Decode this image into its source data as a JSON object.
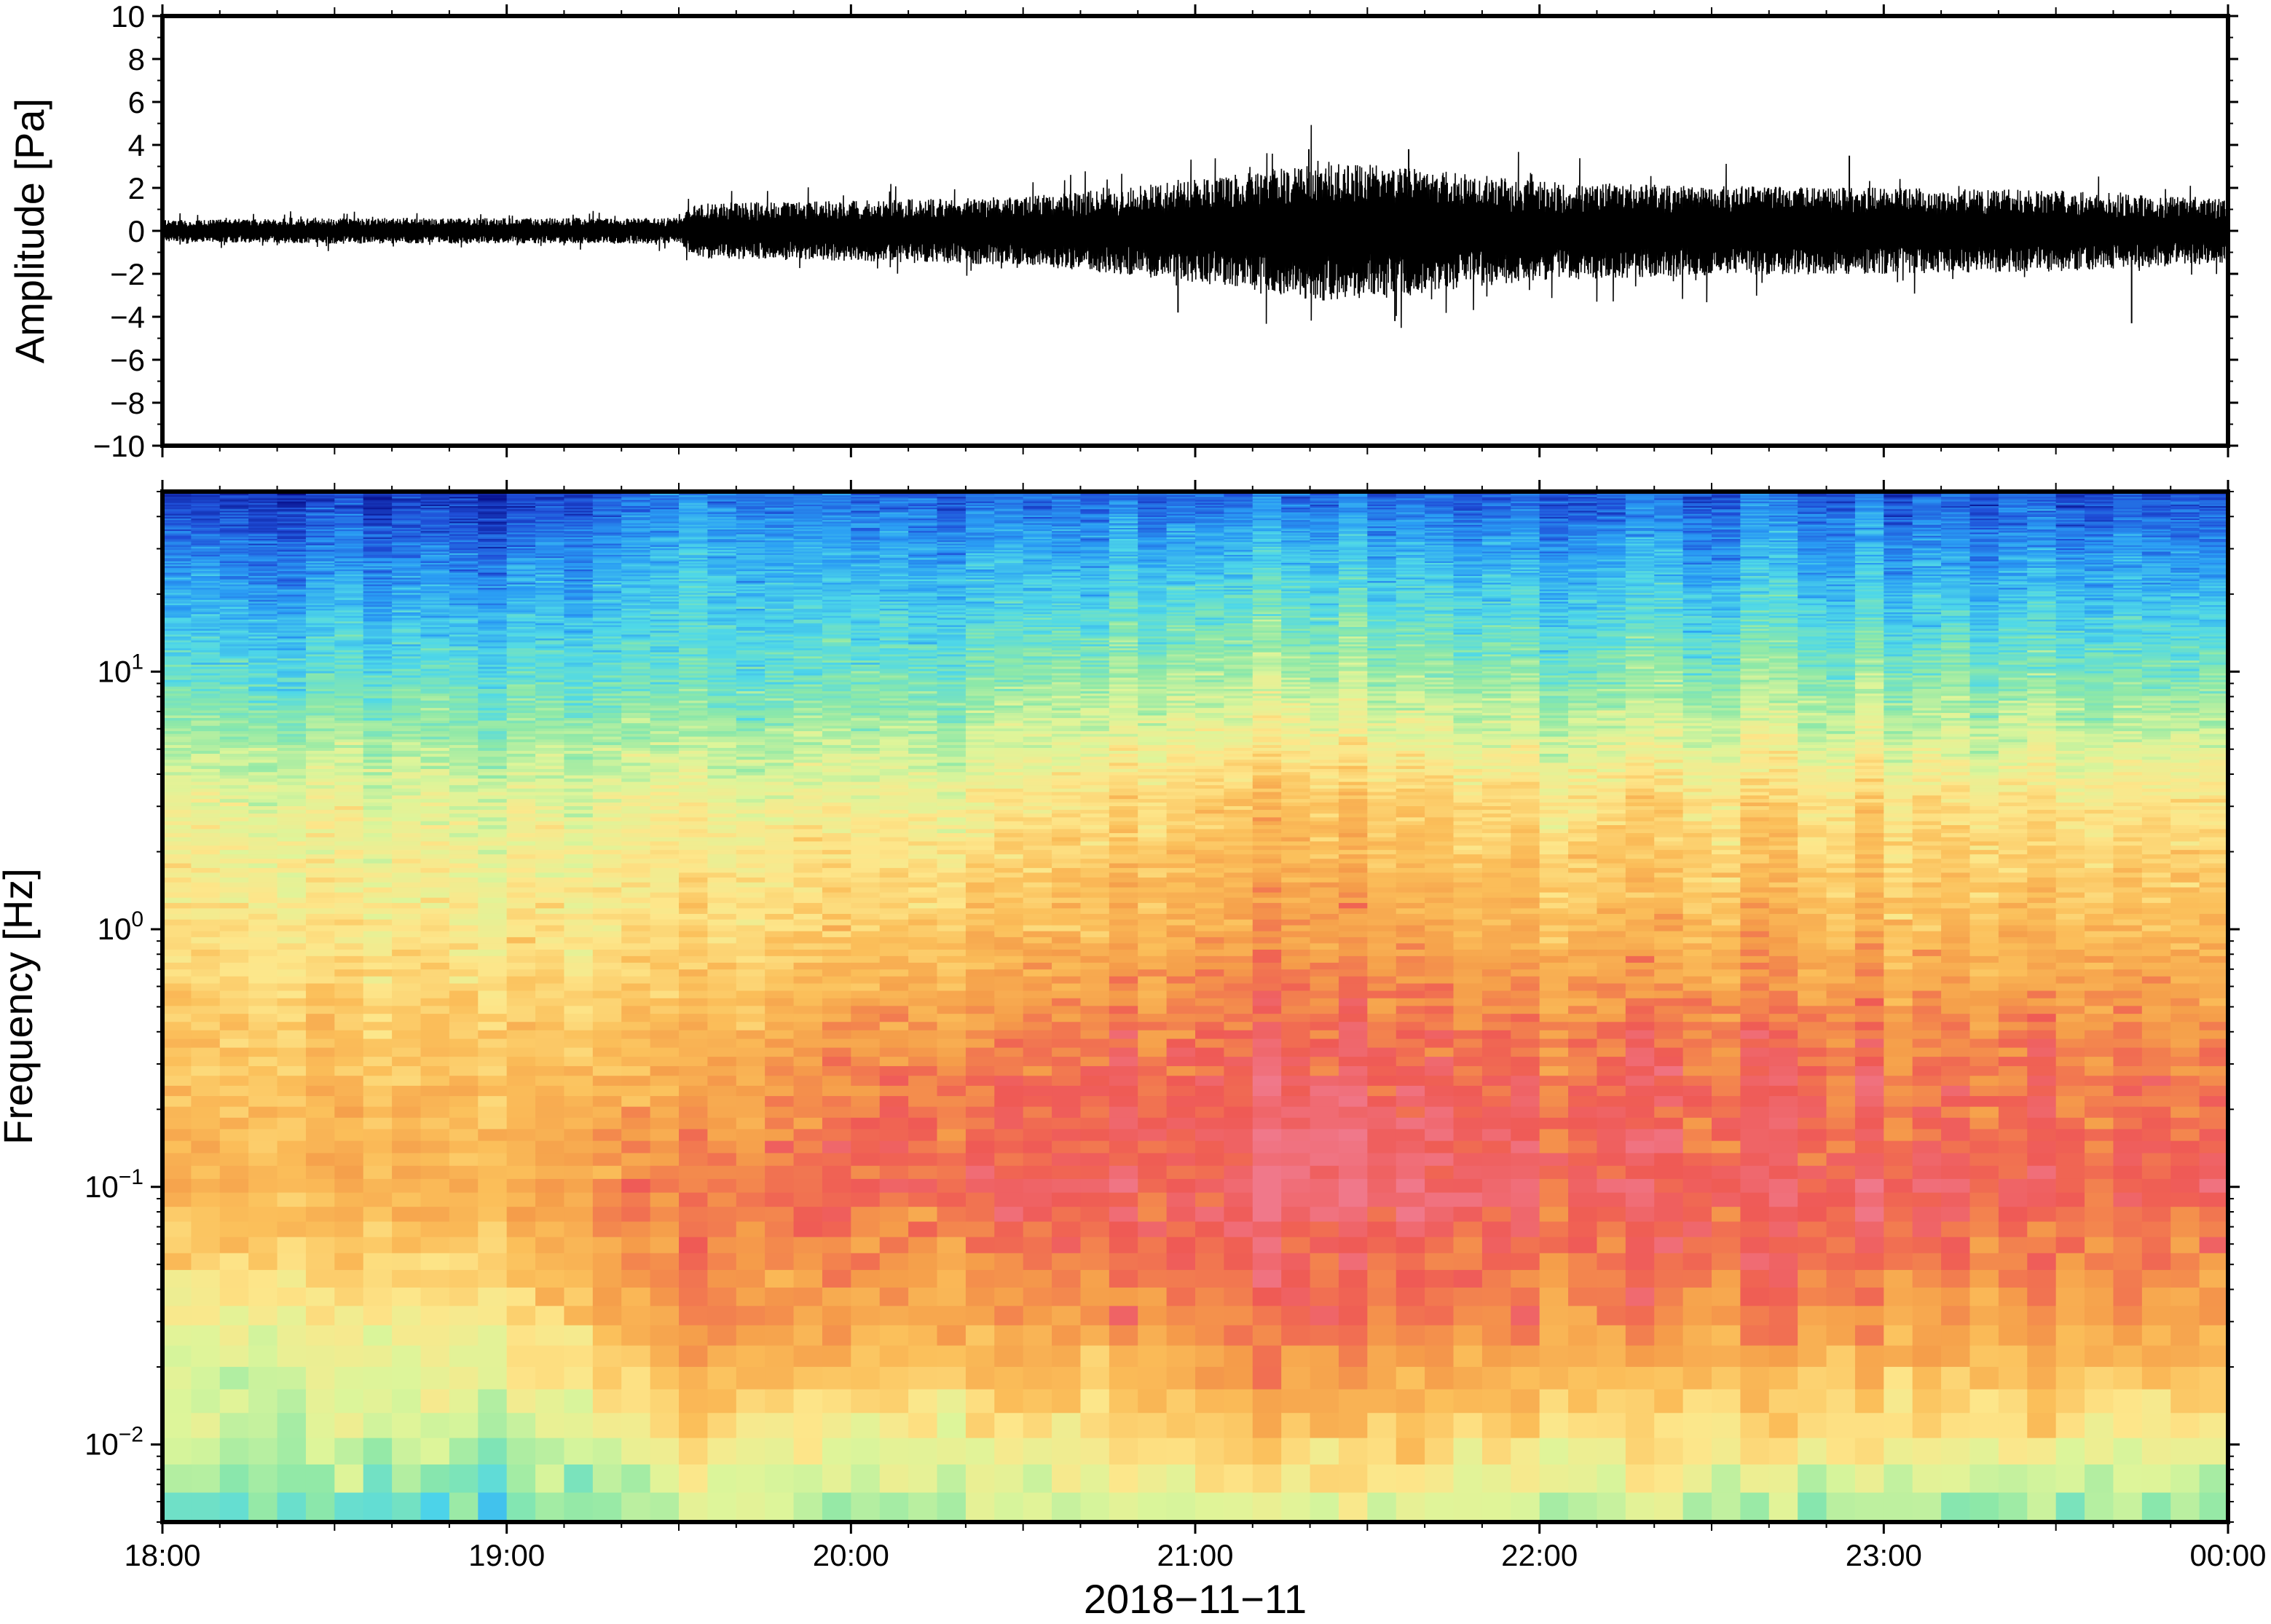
{
  "chart_data": [
    {
      "type": "line",
      "panel": "waveform",
      "ylabel": "Amplitude [Pa]",
      "ylim": [
        -10,
        10
      ],
      "yticks": [
        -10,
        -8,
        -6,
        -4,
        -2,
        0,
        2,
        4,
        6,
        8,
        10
      ],
      "ytick_labels": [
        "−10",
        "−8",
        "−6",
        "−4",
        "−2",
        "0",
        "2",
        "4",
        "6",
        "8",
        "10"
      ],
      "xlim_hours": [
        18,
        24
      ],
      "envelope": {
        "x_hours": [
          18.0,
          18.5,
          19.0,
          19.5,
          19.55,
          20.0,
          20.5,
          20.9,
          21.2,
          21.35,
          21.5,
          21.7,
          22.0,
          22.5,
          23.0,
          23.5,
          24.0
        ],
        "half_amplitude_pa": [
          0.5,
          0.6,
          0.6,
          0.6,
          1.3,
          1.4,
          1.6,
          2.2,
          2.8,
          3.3,
          3.1,
          2.8,
          2.3,
          2.1,
          2.0,
          1.9,
          1.5
        ]
      },
      "peaks": [
        {
          "x_hours": 21.33,
          "value_pa": 3.8
        },
        {
          "x_hours": 21.62,
          "value_pa": 3.8
        },
        {
          "x_hours": 22.9,
          "value_pa": 3.5
        },
        {
          "x_hours": 21.58,
          "value_pa": -4.2
        },
        {
          "x_hours": 23.72,
          "value_pa": -4.3
        },
        {
          "x_hours": 20.95,
          "value_pa": -3.8
        }
      ]
    },
    {
      "type": "heatmap",
      "panel": "spectrogram",
      "xlabel": "2018−11−11",
      "ylabel": "Frequency [Hz]",
      "y_scale": "log",
      "ylim": [
        0.005,
        50
      ],
      "yticks": [
        0.01,
        0.1,
        1,
        10
      ],
      "ytick_labels": [
        {
          "base": "10",
          "exp": "−2"
        },
        {
          "base": "10",
          "exp": "−1"
        },
        {
          "base": "10",
          "exp": "0"
        },
        {
          "base": "10",
          "exp": "1"
        }
      ],
      "xlim_hours": [
        18,
        24
      ],
      "xticks_hours": [
        18,
        19,
        20,
        21,
        22,
        23,
        24
      ],
      "xtick_labels": [
        "18:00",
        "19:00",
        "20:00",
        "21:00",
        "22:00",
        "23:00",
        "00:00"
      ],
      "colormap": [
        "#08108c",
        "#1f4fd8",
        "#2a9df4",
        "#4fd8e8",
        "#8de8a8",
        "#ddf59a",
        "#fde68a",
        "#fbbf5a",
        "#f59e4a",
        "#ef5a55",
        "#f0788a"
      ],
      "color_scale_note_levels_0_to_10": {
        "time_hours": [
          18.0,
          19.0,
          19.55,
          20.0,
          21.0,
          21.35,
          22.0,
          23.0,
          24.0
        ],
        "log10_freq": [
          -2.3,
          -2.0,
          -1.5,
          -1.0,
          -0.5,
          0.0,
          0.5,
          1.0,
          1.5,
          1.7
        ],
        "levels": [
          [
            3.5,
            4.5,
            5.5,
            7.2,
            6.8,
            6.0,
            5.2,
            3.2,
            1.4,
            0.4
          ],
          [
            3.4,
            4.6,
            6.2,
            7.6,
            7.0,
            6.0,
            5.3,
            3.4,
            1.5,
            0.6
          ],
          [
            4.5,
            6.0,
            8.3,
            8.6,
            7.3,
            6.2,
            5.4,
            3.3,
            2.4,
            1.6
          ],
          [
            4.5,
            5.5,
            7.8,
            9.0,
            8.3,
            6.8,
            5.6,
            3.6,
            2.2,
            1.4
          ],
          [
            4.8,
            6.5,
            8.3,
            9.2,
            9.0,
            7.6,
            6.6,
            4.3,
            2.3,
            1.3
          ],
          [
            5.0,
            6.8,
            8.8,
            9.8,
            9.2,
            8.0,
            6.9,
            4.5,
            2.4,
            1.3
          ],
          [
            4.6,
            6.2,
            8.4,
            9.4,
            8.9,
            7.5,
            6.4,
            4.0,
            2.2,
            1.3
          ],
          [
            4.0,
            5.8,
            8.0,
            9.1,
            8.6,
            7.2,
            6.1,
            3.8,
            1.9,
            1.1
          ],
          [
            3.6,
            5.5,
            7.6,
            8.8,
            8.3,
            7.0,
            5.8,
            3.5,
            1.6,
            0.8
          ]
        ]
      }
    }
  ]
}
